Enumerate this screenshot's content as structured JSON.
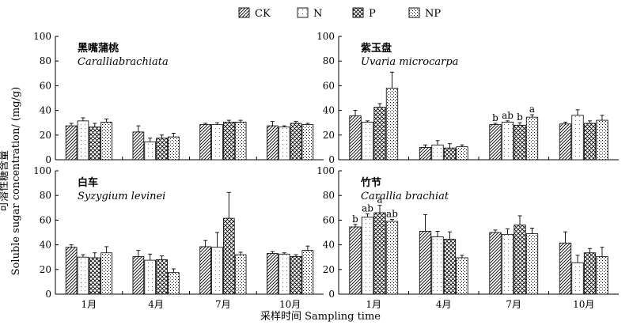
{
  "chart_data": {
    "type": "bar",
    "legend": {
      "placement": "top",
      "entries": [
        {
          "key": "CK",
          "label": "CK",
          "pattern": "pat-ck"
        },
        {
          "key": "N",
          "label": "N",
          "pattern": "pat-n"
        },
        {
          "key": "P",
          "label": "P",
          "pattern": "pat-p"
        },
        {
          "key": "NP",
          "label": "NP",
          "pattern": "pat-np"
        }
      ]
    },
    "categories": [
      "1月",
      "4月",
      "7月",
      "10月"
    ],
    "ylabel_zh": "可溶性糖含量",
    "ylabel_en": "Soluble sugar concentration/ (mg/g)",
    "xlabel": "采样时间 Sampling time",
    "ylim": [
      0,
      100
    ],
    "yticks": [
      0,
      20,
      40,
      60,
      80,
      100
    ],
    "panels": [
      {
        "name_zh": "黑嘴蒲桃",
        "name_sci": "Caralliabrachiata",
        "series": [
          {
            "name": "CK",
            "values": [
              27.5,
              22.5,
              28.5,
              27.5
            ],
            "errors": [
              2,
              5,
              1,
              3.5
            ]
          },
          {
            "name": "N",
            "values": [
              31.5,
              14.5,
              28.5,
              26.5
            ],
            "errors": [
              2.5,
              3,
              1.5,
              1
            ]
          },
          {
            "name": "P",
            "values": [
              26.5,
              17.5,
              30.5,
              29.5
            ],
            "errors": [
              3,
              2.5,
              1.5,
              1.5
            ]
          },
          {
            "name": "NP",
            "values": [
              30.5,
              18.5,
              30.5,
              28.5
            ],
            "errors": [
              2.5,
              3,
              1.5,
              1
            ]
          }
        ],
        "sig_labels": []
      },
      {
        "name_zh": "紫玉盘",
        "name_sci": "Uvaria microcarpa",
        "series": [
          {
            "name": "CK",
            "values": [
              35.5,
              10,
              28.5,
              29
            ],
            "errors": [
              4.5,
              2,
              1,
              1.5
            ]
          },
          {
            "name": "N",
            "values": [
              30.5,
              12,
              30.5,
              36
            ],
            "errors": [
              1,
              3.5,
              1,
              4.5
            ]
          },
          {
            "name": "P",
            "values": [
              42.5,
              9.5,
              28,
              29.5
            ],
            "errors": [
              3,
              3.5,
              2,
              2
            ]
          },
          {
            "name": "NP",
            "values": [
              58,
              10.5,
              34.5,
              32
            ],
            "errors": [
              13,
              1.5,
              2,
              4
            ]
          }
        ],
        "sig_labels": [
          {
            "category": "7月",
            "series": "CK",
            "text": "b"
          },
          {
            "category": "7月",
            "series": "N",
            "text": "ab"
          },
          {
            "category": "7月",
            "series": "P",
            "text": "b"
          },
          {
            "category": "7月",
            "series": "NP",
            "text": "a"
          }
        ]
      },
      {
        "name_zh": "白车",
        "name_sci": "Syzygium levinei",
        "series": [
          {
            "name": "CK",
            "values": [
              38,
              30.5,
              38.5,
              33
            ],
            "errors": [
              2,
              5,
              5,
              1.5
            ]
          },
          {
            "name": "N",
            "values": [
              30,
              27.5,
              38,
              32.5
            ],
            "errors": [
              2,
              5,
              12,
              1
            ]
          },
          {
            "name": "P",
            "values": [
              29.5,
              28,
              61.5,
              30.5
            ],
            "errors": [
              4,
              3,
              21,
              1.5
            ]
          },
          {
            "name": "NP",
            "values": [
              33.5,
              17.5,
              32,
              35.5
            ],
            "errors": [
              5,
              3,
              2,
              3.5
            ]
          }
        ],
        "sig_labels": []
      },
      {
        "name_zh": "竹节",
        "name_sci": "Carallia brachiat",
        "series": [
          {
            "name": "CK",
            "values": [
              54.5,
              51,
              50,
              41.5
            ],
            "errors": [
              2,
              13.5,
              2,
              9
            ]
          },
          {
            "name": "N",
            "values": [
              62.5,
              46.5,
              48.5,
              25.5
            ],
            "errors": [
              2.5,
              4.5,
              4.5,
              6
            ]
          },
          {
            "name": "P",
            "values": [
              66,
              44.5,
              56,
              33.5
            ],
            "errors": [
              6,
              6,
              7.5,
              3.5
            ]
          },
          {
            "name": "NP",
            "values": [
              59,
              29.5,
              49,
              30.5
            ],
            "errors": [
              1.5,
              2,
              4.5,
              7.5
            ]
          }
        ],
        "sig_labels": [
          {
            "category": "1月",
            "series": "CK",
            "text": "b"
          },
          {
            "category": "1月",
            "series": "N",
            "text": "ab"
          },
          {
            "category": "1月",
            "series": "P",
            "text": "a"
          },
          {
            "category": "1月",
            "series": "NP",
            "text": "ab"
          }
        ]
      }
    ]
  }
}
